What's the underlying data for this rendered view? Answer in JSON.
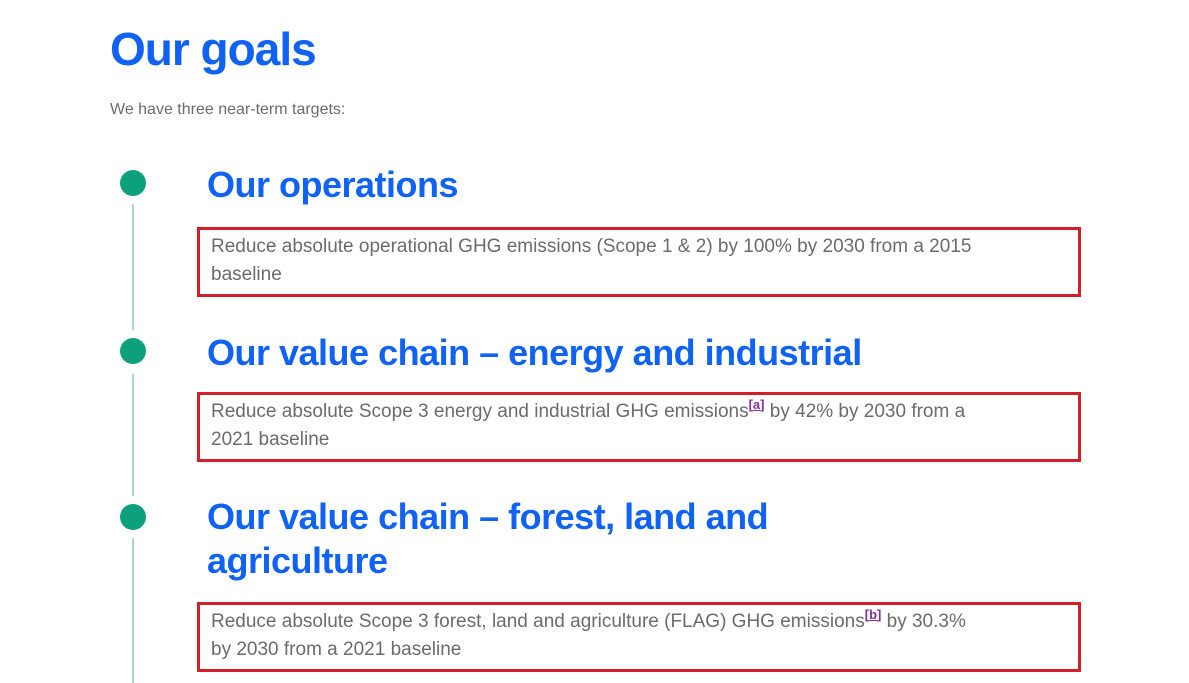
{
  "page": {
    "title": "Our goals",
    "subtitle": "We have three near-term targets:"
  },
  "colors": {
    "heading_blue": "#1062f5",
    "timeline_dot_teal": "#0ca17c",
    "timeline_line_teal": "#a9dbc8",
    "highlight_border_red": "#d2202a",
    "body_gray": "#6b6b6b",
    "footnote_purple": "#7f2da0"
  },
  "footnote_brackets": {
    "open": "[",
    "close": "]"
  },
  "sections": [
    {
      "heading": "Our operations",
      "target_line1": "Reduce absolute operational GHG emissions (Scope 1 & 2) by 100% by 2030 from a 2015",
      "target_line2": "baseline"
    },
    {
      "heading": "Our value chain – energy and industrial",
      "target_line1_before": "Reduce absolute Scope 3 energy and industrial GHG emissions",
      "footnote": "a",
      "target_line1_after": " by 42% by 2030 from a",
      "target_line2": "2021 baseline"
    },
    {
      "heading": "Our value chain – forest, land and agriculture",
      "target_line1_before": "Reduce absolute Scope 3 forest, land and agriculture (FLAG) GHG emissions",
      "footnote": "b",
      "target_line1_after": " by 30.3%",
      "target_line2": "by 2030 from a 2021 baseline"
    }
  ]
}
